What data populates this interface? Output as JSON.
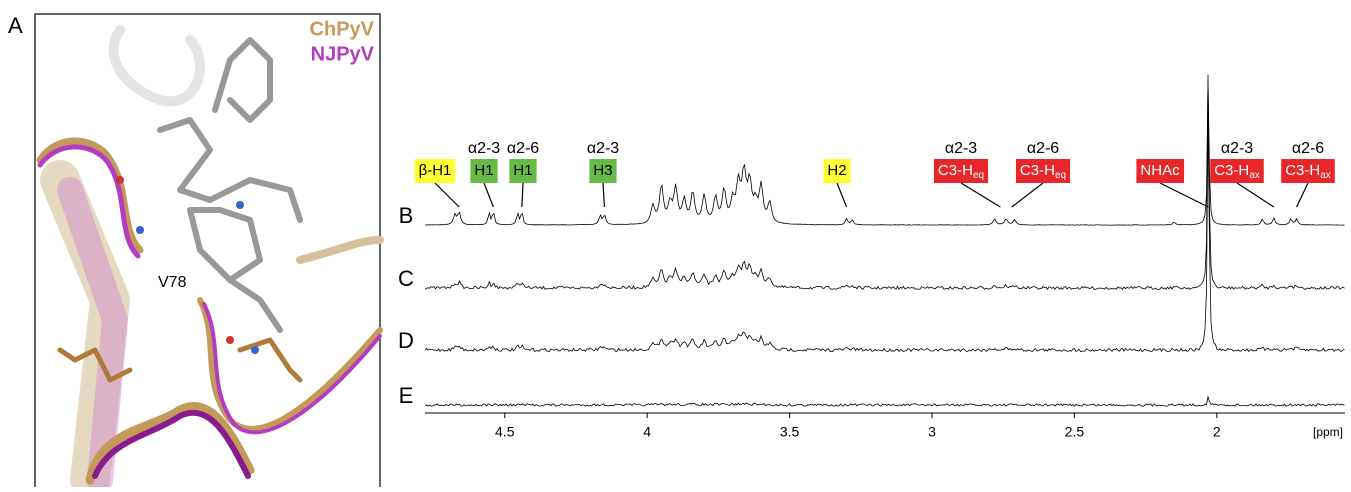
{
  "panel_a": {
    "label": "A",
    "legend": [
      "ChPyV",
      "NJPyV"
    ],
    "residue_label": "V78"
  },
  "spectrum": {
    "xlim": [
      4.78,
      1.55
    ],
    "xticks": [
      4.5,
      4.0,
      3.5,
      3.0,
      2.5,
      2.0
    ],
    "x_unit": "[ppm]",
    "traces": [
      "B",
      "C",
      "D",
      "E"
    ],
    "peaks": [
      {
        "ppm": 4.66,
        "label": "β-H1",
        "color": "#ffff33"
      },
      {
        "ppm": 4.54,
        "group": "α2-3",
        "label": "H1",
        "color": "#66bb44"
      },
      {
        "ppm": 4.44,
        "group": "α2-6",
        "label": "H1",
        "color": "#66bb44"
      },
      {
        "ppm": 4.15,
        "group": "α2-3",
        "label": "H3",
        "color": "#66bb44"
      },
      {
        "ppm": 3.3,
        "label": "H2",
        "color": "#ffff33"
      },
      {
        "ppm": 2.76,
        "group": "α2-3",
        "label": "C3-H",
        "sub": "eq",
        "color": "#e8272a"
      },
      {
        "ppm": 2.72,
        "group": "α2-6",
        "label": "C3-H",
        "sub": "eq",
        "color": "#e8272a"
      },
      {
        "ppm": 2.03,
        "label": "NHAc",
        "color": "#e8272a"
      },
      {
        "ppm": 1.8,
        "group": "α2-3",
        "label": "C3-H",
        "sub": "ax",
        "color": "#e8272a"
      },
      {
        "ppm": 1.72,
        "group": "α2-6",
        "label": "C3-H",
        "sub": "ax",
        "color": "#e8272a"
      }
    ]
  }
}
